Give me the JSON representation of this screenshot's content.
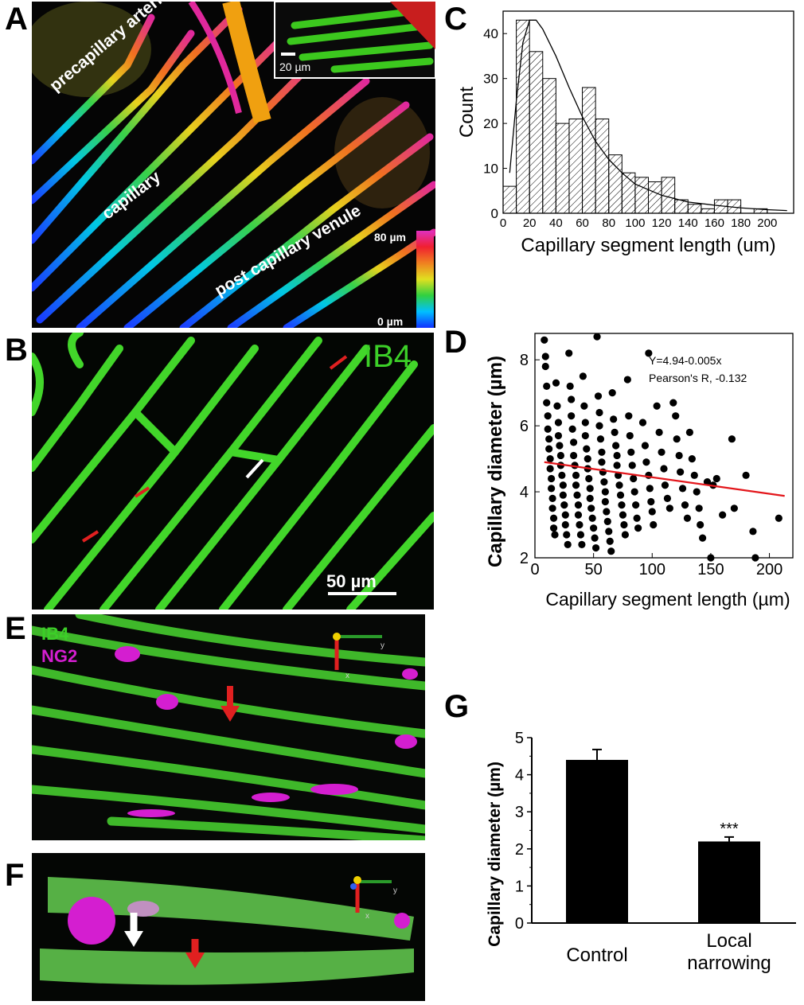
{
  "panels": {
    "a": {
      "letter": "A",
      "labels": {
        "arteriole": "precapillary arteriole",
        "capillary": "capillary",
        "venule": "post capillary venule"
      },
      "colorbar_top": "80 µm",
      "colorbar_bottom": "0 µm",
      "inset_scale": "20 µm"
    },
    "b": {
      "letter": "B",
      "stain": "IB4",
      "scale": "50 µm"
    },
    "c": {
      "letter": "C"
    },
    "d": {
      "letter": "D"
    },
    "e": {
      "letter": "E",
      "stain1": "IB4",
      "stain2": "NG2",
      "axis_y": "y",
      "axis_x": "x"
    },
    "f": {
      "letter": "F",
      "axis_y": "y",
      "axis_x": "x"
    },
    "g": {
      "letter": "G"
    }
  },
  "chart_data": [
    {
      "id": "C",
      "type": "bar",
      "xlabel": "Capillary segment length (um)",
      "ylabel": "Count",
      "xlim": [
        0,
        220
      ],
      "ylim": [
        0,
        45
      ],
      "xticks": [
        0,
        20,
        40,
        60,
        80,
        100,
        120,
        140,
        160,
        180,
        200
      ],
      "yticks": [
        0,
        10,
        20,
        30,
        40
      ],
      "bin_width": 10,
      "bins": [
        {
          "x0": 0,
          "count": 6
        },
        {
          "x0": 10,
          "count": 43
        },
        {
          "x0": 20,
          "count": 36
        },
        {
          "x0": 30,
          "count": 30
        },
        {
          "x0": 40,
          "count": 20
        },
        {
          "x0": 50,
          "count": 21
        },
        {
          "x0": 60,
          "count": 28
        },
        {
          "x0": 70,
          "count": 21
        },
        {
          "x0": 80,
          "count": 13
        },
        {
          "x0": 90,
          "count": 9
        },
        {
          "x0": 100,
          "count": 8
        },
        {
          "x0": 110,
          "count": 7
        },
        {
          "x0": 120,
          "count": 8
        },
        {
          "x0": 130,
          "count": 3
        },
        {
          "x0": 140,
          "count": 2
        },
        {
          "x0": 150,
          "count": 1
        },
        {
          "x0": 160,
          "count": 3
        },
        {
          "x0": 170,
          "count": 3
        },
        {
          "x0": 180,
          "count": 0
        },
        {
          "x0": 190,
          "count": 1
        },
        {
          "x0": 200,
          "count": 0
        }
      ],
      "fit_curve": {
        "x": [
          5,
          10,
          15,
          20,
          25,
          30,
          40,
          50,
          60,
          70,
          80,
          90,
          100,
          120,
          140,
          160,
          180,
          200,
          215
        ],
        "y": [
          9,
          25,
          38,
          43,
          43,
          41,
          35,
          28,
          21.5,
          16,
          12,
          9,
          6.5,
          4,
          2.5,
          1.8,
          1.2,
          0.8,
          0.6
        ]
      }
    },
    {
      "id": "D",
      "type": "scatter",
      "xlabel": "Capillary segment length (µm)",
      "ylabel": "Capillary diameter (µm)",
      "xlim": [
        0,
        220
      ],
      "ylim": [
        2,
        8.8
      ],
      "xticks": [
        0,
        50,
        100,
        150,
        200
      ],
      "yticks": [
        2,
        4,
        6,
        8
      ],
      "annotation_eq": "Y=4.94-0.005x",
      "annotation_r": "Pearson's R, -0.132",
      "fit_line": {
        "intercept": 4.94,
        "slope": -0.005,
        "x_range": [
          8,
          213
        ],
        "color": "#e3161b"
      },
      "points": [
        [
          8,
          8.6
        ],
        [
          9,
          8.1
        ],
        [
          9,
          7.8
        ],
        [
          10,
          7.2
        ],
        [
          10,
          6.7
        ],
        [
          11,
          6.3
        ],
        [
          11,
          5.9
        ],
        [
          12,
          5.6
        ],
        [
          12,
          5.3
        ],
        [
          13,
          5.0
        ],
        [
          13,
          4.7
        ],
        [
          14,
          4.4
        ],
        [
          14,
          4.1
        ],
        [
          15,
          3.8
        ],
        [
          15,
          3.5
        ],
        [
          16,
          3.2
        ],
        [
          16,
          2.9
        ],
        [
          17,
          2.7
        ],
        [
          18,
          7.3
        ],
        [
          19,
          6.6
        ],
        [
          20,
          6.1
        ],
        [
          20,
          5.7
        ],
        [
          21,
          5.4
        ],
        [
          22,
          5.1
        ],
        [
          22,
          4.8
        ],
        [
          23,
          4.5
        ],
        [
          24,
          4.2
        ],
        [
          24,
          3.9
        ],
        [
          25,
          3.6
        ],
        [
          26,
          3.3
        ],
        [
          26,
          3.0
        ],
        [
          27,
          2.7
        ],
        [
          28,
          2.4
        ],
        [
          29,
          8.2
        ],
        [
          30,
          7.2
        ],
        [
          31,
          6.8
        ],
        [
          31,
          6.3
        ],
        [
          32,
          5.9
        ],
        [
          33,
          5.5
        ],
        [
          33,
          5.1
        ],
        [
          34,
          4.8
        ],
        [
          35,
          4.5
        ],
        [
          35,
          4.2
        ],
        [
          36,
          3.9
        ],
        [
          37,
          3.6
        ],
        [
          37,
          3.3
        ],
        [
          38,
          3.0
        ],
        [
          39,
          2.7
        ],
        [
          40,
          2.4
        ],
        [
          41,
          7.5
        ],
        [
          42,
          6.6
        ],
        [
          43,
          6.1
        ],
        [
          43,
          5.7
        ],
        [
          44,
          5.3
        ],
        [
          45,
          5.0
        ],
        [
          45,
          4.7
        ],
        [
          46,
          4.4
        ],
        [
          47,
          4.1
        ],
        [
          47,
          3.8
        ],
        [
          48,
          3.5
        ],
        [
          49,
          3.2
        ],
        [
          50,
          2.9
        ],
        [
          51,
          2.6
        ],
        [
          52,
          2.3
        ],
        [
          53,
          8.7
        ],
        [
          54,
          6.9
        ],
        [
          55,
          6.4
        ],
        [
          55,
          6.0
        ],
        [
          56,
          5.6
        ],
        [
          57,
          5.2
        ],
        [
          57,
          4.9
        ],
        [
          58,
          4.6
        ],
        [
          59,
          4.3
        ],
        [
          60,
          4.0
        ],
        [
          60,
          3.7
        ],
        [
          61,
          3.4
        ],
        [
          62,
          3.1
        ],
        [
          63,
          2.8
        ],
        [
          64,
          2.5
        ],
        [
          65,
          2.2
        ],
        [
          66,
          7.0
        ],
        [
          67,
          6.2
        ],
        [
          68,
          5.8
        ],
        [
          69,
          5.4
        ],
        [
          70,
          5.1
        ],
        [
          70,
          4.8
        ],
        [
          71,
          4.5
        ],
        [
          72,
          4.2
        ],
        [
          73,
          3.9
        ],
        [
          74,
          3.6
        ],
        [
          75,
          3.3
        ],
        [
          76,
          3.0
        ],
        [
          77,
          2.7
        ],
        [
          79,
          7.4
        ],
        [
          80,
          6.3
        ],
        [
          81,
          5.7
        ],
        [
          82,
          5.2
        ],
        [
          83,
          4.8
        ],
        [
          84,
          4.4
        ],
        [
          85,
          4.0
        ],
        [
          86,
          3.6
        ],
        [
          87,
          3.2
        ],
        [
          88,
          2.9
        ],
        [
          92,
          6.1
        ],
        [
          94,
          5.4
        ],
        [
          95,
          4.9
        ],
        [
          97,
          4.5
        ],
        [
          98,
          4.1
        ],
        [
          99,
          3.7
        ],
        [
          100,
          3.4
        ],
        [
          101,
          3.0
        ],
        [
          97,
          8.2
        ],
        [
          104,
          6.6
        ],
        [
          106,
          5.8
        ],
        [
          108,
          5.2
        ],
        [
          110,
          4.7
        ],
        [
          111,
          4.2
        ],
        [
          113,
          3.8
        ],
        [
          115,
          3.5
        ],
        [
          118,
          6.7
        ],
        [
          120,
          6.3
        ],
        [
          121,
          5.6
        ],
        [
          123,
          5.1
        ],
        [
          124,
          4.6
        ],
        [
          126,
          4.1
        ],
        [
          128,
          3.6
        ],
        [
          130,
          3.2
        ],
        [
          132,
          5.8
        ],
        [
          134,
          5.0
        ],
        [
          136,
          4.5
        ],
        [
          138,
          4.0
        ],
        [
          140,
          3.5
        ],
        [
          141,
          3.0
        ],
        [
          143,
          2.6
        ],
        [
          147,
          4.3
        ],
        [
          152,
          4.2
        ],
        [
          155,
          4.4
        ],
        [
          160,
          3.3
        ],
        [
          168,
          5.6
        ],
        [
          170,
          3.5
        ],
        [
          180,
          4.5
        ],
        [
          186,
          2.8
        ],
        [
          188,
          2.0
        ],
        [
          208,
          3.2
        ],
        [
          150,
          2.0
        ]
      ]
    },
    {
      "id": "G",
      "type": "bar",
      "xlabel": "",
      "ylabel": "Capillary diameter (µm)",
      "ylim": [
        0,
        5
      ],
      "yticks": [
        0,
        1,
        2,
        3,
        4,
        5
      ],
      "categories": [
        "Control",
        "Local narrowing"
      ],
      "values": [
        4.4,
        2.2
      ],
      "errors": [
        0.28,
        0.12
      ],
      "significance": [
        "",
        "***"
      ]
    }
  ]
}
